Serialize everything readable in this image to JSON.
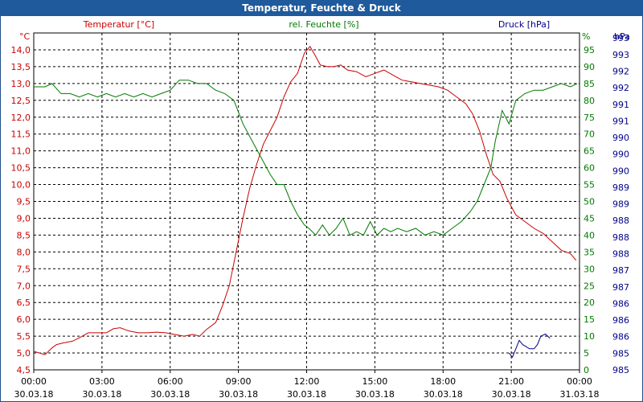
{
  "window": {
    "title": "Temperatur, Feuchte & Druck"
  },
  "chart_data": {
    "type": "line",
    "title": "Temperatur, Feuchte & Druck",
    "grid": true,
    "colors": {
      "temperature": "#cc0000",
      "humidity": "#007a00",
      "pressure": "#00008b",
      "grid": "#000000"
    },
    "axes": {
      "left": {
        "unit": "°C",
        "label": "Temperatur [°C]",
        "ylim": [
          4.5,
          14.5
        ],
        "ticks": [
          "4,5",
          "5,0",
          "5,5",
          "6,0",
          "6,5",
          "7,0",
          "7,5",
          "8,0",
          "8,5",
          "9,0",
          "9,5",
          "10,0",
          "10,5",
          "11,0",
          "11,5",
          "12,0",
          "12,5",
          "13,0",
          "13,5",
          "14,0"
        ]
      },
      "middle": {
        "unit": "%",
        "label": "rel. Feuchte [%]",
        "ylim": [
          0,
          100
        ],
        "ticks": [
          "0",
          "5",
          "10",
          "15",
          "20",
          "25",
          "30",
          "35",
          "40",
          "45",
          "50",
          "55",
          "60",
          "65",
          "70",
          "75",
          "80",
          "85",
          "90",
          "95"
        ]
      },
      "right": {
        "unit": "hPa",
        "label": "Druck [hPa]",
        "ylim": [
          985,
          993
        ],
        "ticks": [
          "985",
          "985",
          "986",
          "986",
          "986",
          "987",
          "987",
          "988",
          "988",
          "988",
          "989",
          "989",
          "990",
          "990",
          "990",
          "991",
          "991",
          "992",
          "992",
          "993",
          "993"
        ]
      }
    },
    "x_ticks": [
      {
        "time": "00:00",
        "date": "30.03.18"
      },
      {
        "time": "03:00",
        "date": "30.03.18"
      },
      {
        "time": "06:00",
        "date": "30.03.18"
      },
      {
        "time": "09:00",
        "date": "30.03.18"
      },
      {
        "time": "12:00",
        "date": "30.03.18"
      },
      {
        "time": "15:00",
        "date": "30.03.18"
      },
      {
        "time": "18:00",
        "date": "30.03.18"
      },
      {
        "time": "21:00",
        "date": "30.03.18"
      },
      {
        "time": "00:00",
        "date": "31.03.18"
      }
    ],
    "xlim_hours": [
      0,
      24
    ],
    "series": [
      {
        "name": "Temperatur [°C]",
        "axis": "left",
        "x": [
          0,
          0.25,
          0.5,
          0.8,
          1.0,
          1.3,
          1.7,
          2.0,
          2.4,
          2.8,
          3.2,
          3.5,
          3.8,
          4.2,
          4.6,
          5.0,
          5.4,
          5.8,
          6.2,
          6.6,
          7.0,
          7.3,
          7.6,
          8.0,
          8.3,
          8.6,
          8.9,
          9.2,
          9.5,
          9.8,
          10.1,
          10.4,
          10.7,
          11.0,
          11.3,
          11.6,
          11.9,
          12.15,
          12.4,
          12.6,
          12.9,
          13.2,
          13.5,
          13.8,
          14.2,
          14.6,
          15.0,
          15.4,
          15.8,
          16.2,
          16.6,
          17.0,
          17.4,
          17.8,
          18.2,
          18.6,
          19.0,
          19.3,
          19.6,
          19.9,
          20.2,
          20.5,
          20.8,
          21.2,
          21.6,
          22.0,
          22.4,
          22.8,
          23.2,
          23.6,
          23.85
        ],
        "y": [
          5.05,
          5.0,
          4.95,
          5.15,
          5.25,
          5.3,
          5.35,
          5.45,
          5.6,
          5.6,
          5.6,
          5.72,
          5.75,
          5.65,
          5.6,
          5.6,
          5.62,
          5.6,
          5.55,
          5.5,
          5.55,
          5.5,
          5.7,
          5.9,
          6.4,
          7.0,
          8.0,
          9.0,
          9.9,
          10.6,
          11.2,
          11.6,
          12.0,
          12.6,
          13.05,
          13.3,
          13.9,
          14.1,
          13.8,
          13.55,
          13.5,
          13.5,
          13.55,
          13.4,
          13.35,
          13.2,
          13.3,
          13.4,
          13.25,
          13.1,
          13.05,
          13.0,
          12.95,
          12.9,
          12.8,
          12.6,
          12.4,
          12.1,
          11.6,
          10.9,
          10.3,
          10.1,
          9.6,
          9.1,
          8.9,
          8.7,
          8.55,
          8.3,
          8.05,
          7.95,
          7.75
        ]
      },
      {
        "name": "rel. Feuchte [%]",
        "axis": "middle",
        "x": [
          0,
          0.5,
          0.8,
          1.2,
          1.6,
          2.0,
          2.4,
          2.8,
          3.2,
          3.6,
          4.0,
          4.4,
          4.8,
          5.2,
          5.6,
          6.0,
          6.4,
          6.8,
          7.2,
          7.6,
          8.0,
          8.4,
          8.8,
          9.2,
          9.6,
          10.0,
          10.4,
          10.7,
          11.0,
          11.3,
          11.6,
          11.9,
          12.1,
          12.4,
          12.7,
          13.0,
          13.3,
          13.6,
          13.9,
          14.2,
          14.5,
          14.8,
          15.1,
          15.4,
          15.7,
          16.0,
          16.4,
          16.8,
          17.2,
          17.6,
          18.0,
          18.4,
          18.8,
          19.2,
          19.5,
          19.8,
          20.1,
          20.3,
          20.6,
          20.9,
          21.2,
          21.6,
          22.0,
          22.4,
          22.8,
          23.2,
          23.6,
          23.9
        ],
        "y": [
          84,
          84,
          85,
          82,
          82,
          81,
          82,
          81,
          82,
          81,
          82,
          81,
          82,
          81,
          82,
          83,
          86,
          86,
          85,
          85,
          83,
          82,
          80,
          73,
          68,
          63,
          58,
          55,
          55,
          50,
          46,
          43,
          42,
          40,
          43,
          40,
          42,
          45,
          40,
          41,
          40,
          44,
          40,
          42,
          41,
          42,
          41,
          42,
          40,
          41,
          40,
          42,
          44,
          47,
          50,
          55,
          60,
          68,
          77,
          73,
          80,
          82,
          83,
          83,
          84,
          85,
          84,
          85
        ]
      },
      {
        "name": "Druck [hPa]",
        "axis": "right",
        "x": [
          20.9,
          21.05,
          21.2,
          21.35,
          21.5,
          21.8,
          22.0,
          22.15,
          22.3,
          22.5,
          22.7
        ],
        "y": [
          985.4,
          985.3,
          985.5,
          985.7,
          985.6,
          985.5,
          985.5,
          985.6,
          985.8,
          985.85,
          985.75
        ]
      }
    ]
  }
}
